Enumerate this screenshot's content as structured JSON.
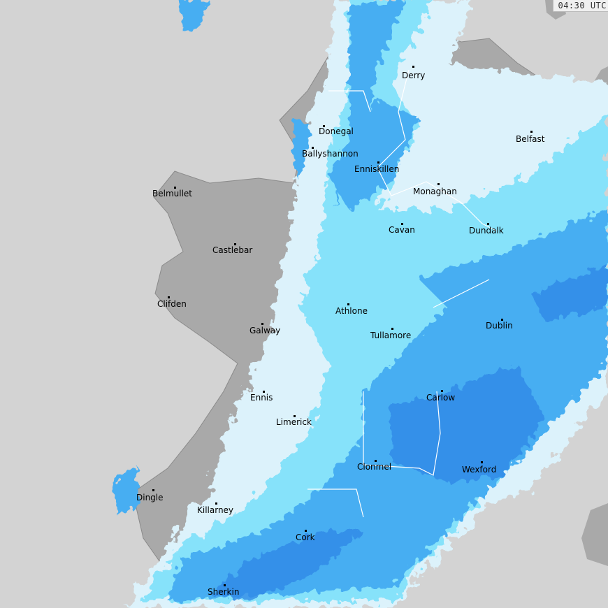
{
  "timestamp": "04:30 UTC",
  "colors": {
    "sea": "#d3d3d3",
    "land": "#a9a9a9",
    "rain_light": "#dcf2fb",
    "rain_cyan": "#86e2fa",
    "rain_blue": "#46aef2",
    "rain_heavy": "#2f86e6",
    "border": "#ffffff",
    "coast": "#8a8a8a"
  },
  "cities": [
    {
      "name": "Derry"
    },
    {
      "name": "Donegal"
    },
    {
      "name": "Ballyshannon"
    },
    {
      "name": "Enniskillen"
    },
    {
      "name": "Belfast"
    },
    {
      "name": "Monaghan"
    },
    {
      "name": "Belmullet"
    },
    {
      "name": "Cavan"
    },
    {
      "name": "Dundalk"
    },
    {
      "name": "Castlebar"
    },
    {
      "name": "Clifden"
    },
    {
      "name": "Athlone"
    },
    {
      "name": "Galway"
    },
    {
      "name": "Dublin"
    },
    {
      "name": "Tullamore"
    },
    {
      "name": "Ennis"
    },
    {
      "name": "Carlow"
    },
    {
      "name": "Limerick"
    },
    {
      "name": "Clonmel"
    },
    {
      "name": "Wexford"
    },
    {
      "name": "Dingle"
    },
    {
      "name": "Killarney"
    },
    {
      "name": "Cork"
    },
    {
      "name": "Sherkin"
    }
  ]
}
